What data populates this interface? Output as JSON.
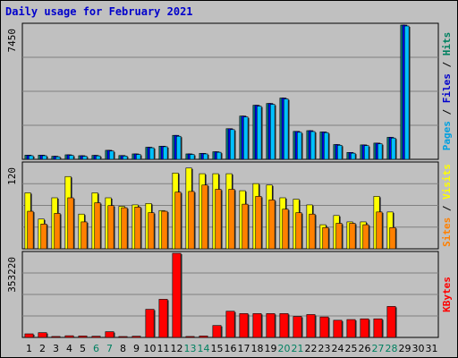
{
  "chart_data": {
    "type": "bar",
    "title": "Daily usage for February 2021",
    "categories": [
      "1",
      "2",
      "3",
      "4",
      "5",
      "6",
      "7",
      "8",
      "9",
      "10",
      "11",
      "12",
      "13",
      "14",
      "15",
      "16",
      "17",
      "18",
      "19",
      "20",
      "21",
      "22",
      "23",
      "24",
      "25",
      "26",
      "27",
      "28",
      "29",
      "30",
      "31"
    ],
    "weekend_days": [
      "6",
      "7",
      "13",
      "14",
      "20",
      "21",
      "27",
      "28"
    ],
    "panels": [
      {
        "name": "hits",
        "ymax_label": "7450",
        "ymax": 7450,
        "right_label_parts": [
          {
            "text": "Pages",
            "color": "#00a0e0"
          },
          {
            "text": " / ",
            "color": "#000000"
          },
          {
            "text": "Files",
            "color": "#0000cc"
          },
          {
            "text": " / ",
            "color": "#000000"
          },
          {
            "text": "Hits",
            "color": "#008060"
          }
        ],
        "series": [
          {
            "name": "Hits",
            "color": "#008080",
            "values": [
              230,
              230,
              170,
              250,
              200,
              220,
              500,
              210,
              300,
              670,
              730,
              1330,
              300,
              330,
              420,
              1700,
              2400,
              3000,
              3100,
              3400,
              1550,
              1590,
              1520,
              820,
              380,
              800,
              900,
              1220,
              7450,
              null,
              null
            ]
          },
          {
            "name": "Files",
            "color": "#0000ff",
            "values": [
              230,
              230,
              170,
              250,
              200,
              220,
              500,
              210,
              300,
              670,
              730,
              1330,
              300,
              330,
              420,
              1700,
              2400,
              3000,
              3100,
              3400,
              1550,
              1590,
              1520,
              820,
              380,
              800,
              900,
              1220,
              7450,
              null,
              null
            ]
          },
          {
            "name": "Pages",
            "color": "#00c0ff",
            "values": [
              200,
              200,
              140,
              220,
              170,
              190,
              460,
              180,
              270,
              640,
              700,
              1280,
              270,
              300,
              390,
              1650,
              2350,
              2950,
              3050,
              3350,
              1500,
              1540,
              1480,
              780,
              340,
              760,
              860,
              1180,
              7400,
              null,
              null
            ]
          }
        ]
      },
      {
        "name": "visits",
        "ymax_label": "120",
        "ymax": 120,
        "right_label_parts": [
          {
            "text": "Sites",
            "color": "#ff8000"
          },
          {
            "text": " / ",
            "color": "#000000"
          },
          {
            "text": "Visits",
            "color": "#ffff00"
          }
        ],
        "series": [
          {
            "name": "Visits",
            "color": "#ffff00",
            "values": [
              79,
              42,
              72,
              102,
              49,
              79,
              72,
              60,
              62,
              64,
              54,
              107,
              114,
              106,
              106,
              106,
              82,
              92,
              90,
              72,
              70,
              62,
              34,
              47,
              38,
              38,
              74,
              52,
              null,
              null,
              null
            ]
          },
          {
            "name": "Sites",
            "color": "#ff8000",
            "values": [
              53,
              35,
              50,
              72,
              38,
              65,
              61,
              58,
              59,
              51,
              53,
              80,
              81,
              90,
              84,
              84,
              63,
              74,
              69,
              56,
              51,
              49,
              30,
              36,
              36,
              34,
              52,
              30,
              null,
              null,
              null
            ]
          }
        ]
      },
      {
        "name": "kbytes",
        "ymax_label": "353220",
        "ymax": 353220,
        "right_label_parts": [
          {
            "text": "KBytes",
            "color": "#ff0000"
          }
        ],
        "series": [
          {
            "name": "KBytes",
            "color": "#ff0000",
            "values": [
              15000,
              20000,
              4000,
              7000,
              6000,
              5000,
              24000,
              3000,
              5000,
              118000,
              160000,
              353220,
              4000,
              6000,
              50000,
              110000,
              100000,
              100000,
              100000,
              100000,
              88000,
              96000,
              86000,
              72000,
              75000,
              78000,
              78000,
              130000,
              null,
              null,
              null
            ]
          }
        ]
      }
    ]
  }
}
